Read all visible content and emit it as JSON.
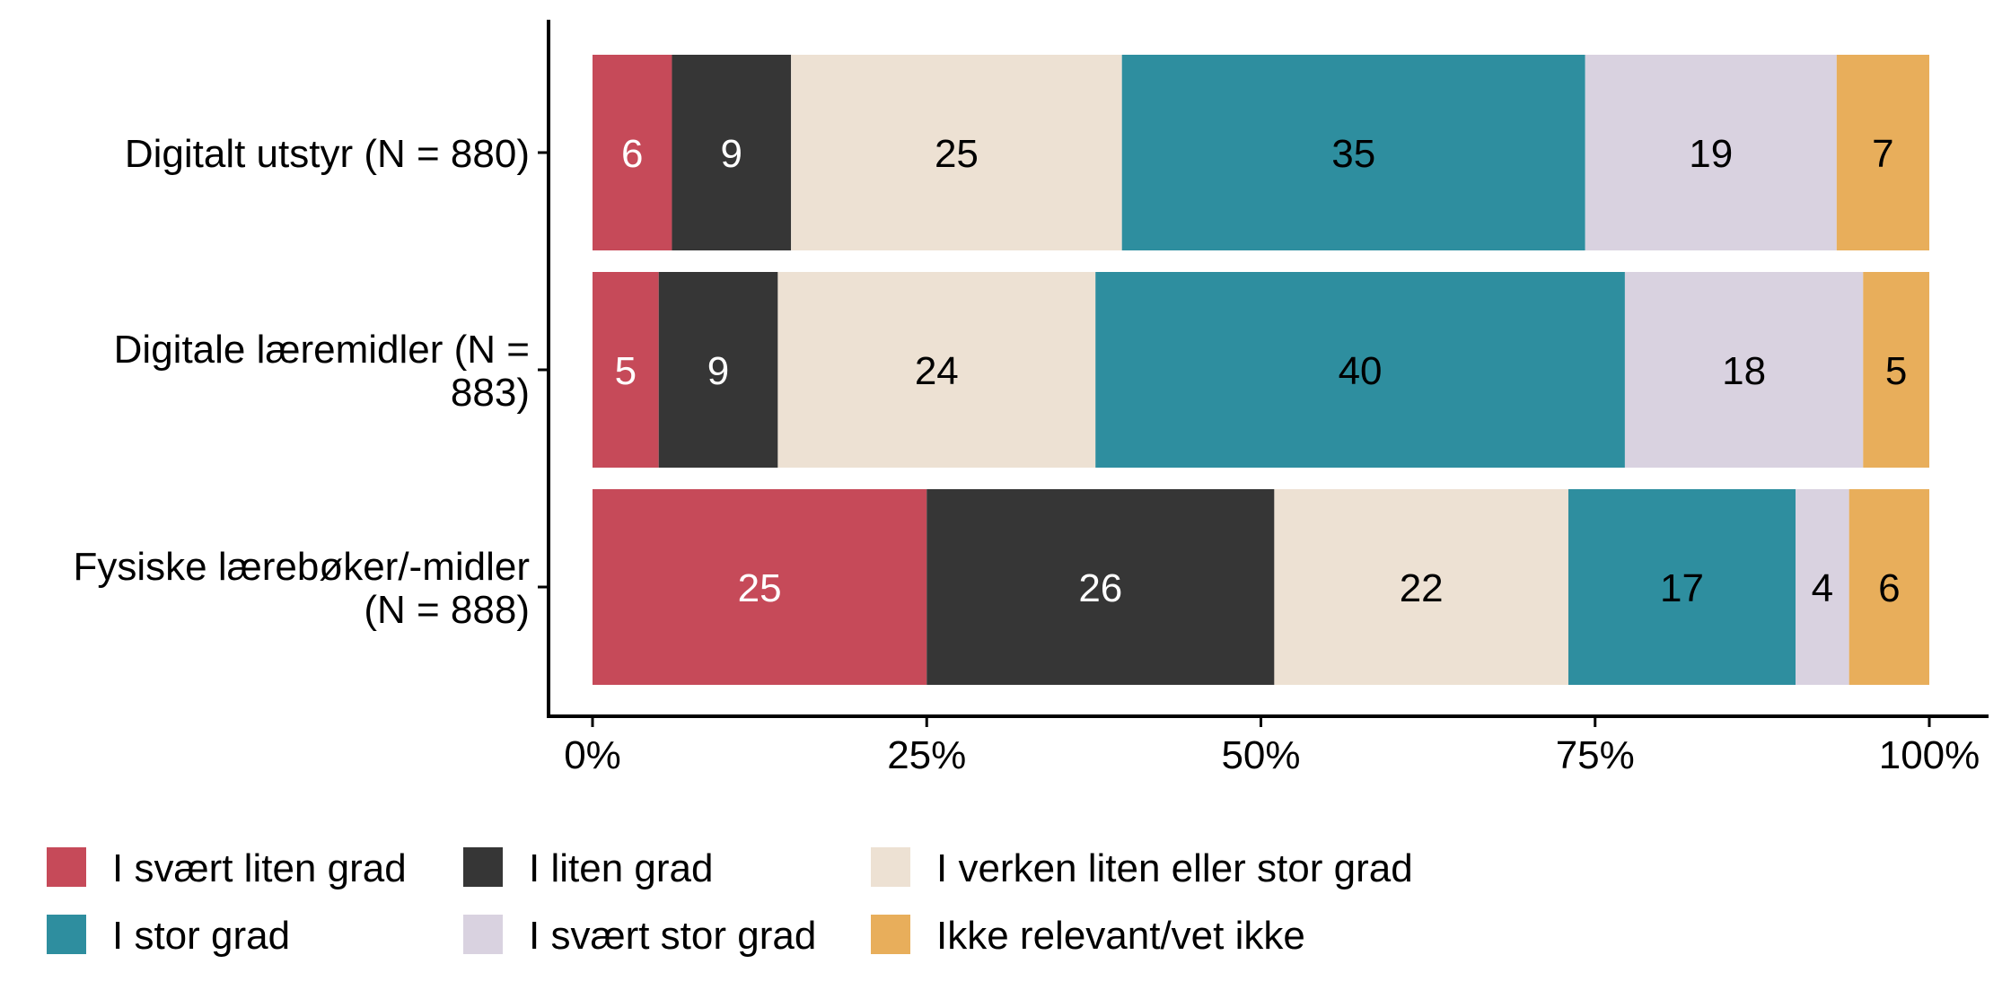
{
  "chart_data": {
    "type": "bar",
    "orientation": "horizontal",
    "stacked": true,
    "normalized_percent": true,
    "categories": [
      [
        "Digitalt utstyr (N = 880)"
      ],
      [
        "Digitale læremidler (N =",
        "883)"
      ],
      [
        "Fysiske lærebøker/-midler",
        "(N = 888)"
      ]
    ],
    "series": [
      {
        "name": "I svært liten grad",
        "color": "#C64A59",
        "label_color": "#ffffff",
        "values": [
          6,
          5,
          25
        ]
      },
      {
        "name": "I liten grad",
        "color": "#363636",
        "label_color": "#ffffff",
        "values": [
          9,
          9,
          26
        ]
      },
      {
        "name": "I verken liten eller stor grad",
        "color": "#EDE1D3",
        "label_color": "#000000",
        "values": [
          25,
          24,
          22
        ]
      },
      {
        "name": "I stor grad",
        "color": "#2E8E9F",
        "label_color": "#000000",
        "values": [
          35,
          40,
          17
        ]
      },
      {
        "name": "I svært stor grad",
        "color": "#D9D2E0",
        "label_color": "#000000",
        "values": [
          19,
          18,
          4
        ]
      },
      {
        "name": "Ikke relevant/vet ikke",
        "color": "#E8AE5B",
        "label_color": "#000000",
        "values": [
          7,
          5,
          6
        ]
      }
    ],
    "xlim": [
      0,
      100
    ],
    "xticks": [
      "0%",
      "25%",
      "50%",
      "75%",
      "100%"
    ],
    "xlabel": "",
    "ylabel": "",
    "title": "",
    "grid": false,
    "legend_position": "bottom"
  }
}
